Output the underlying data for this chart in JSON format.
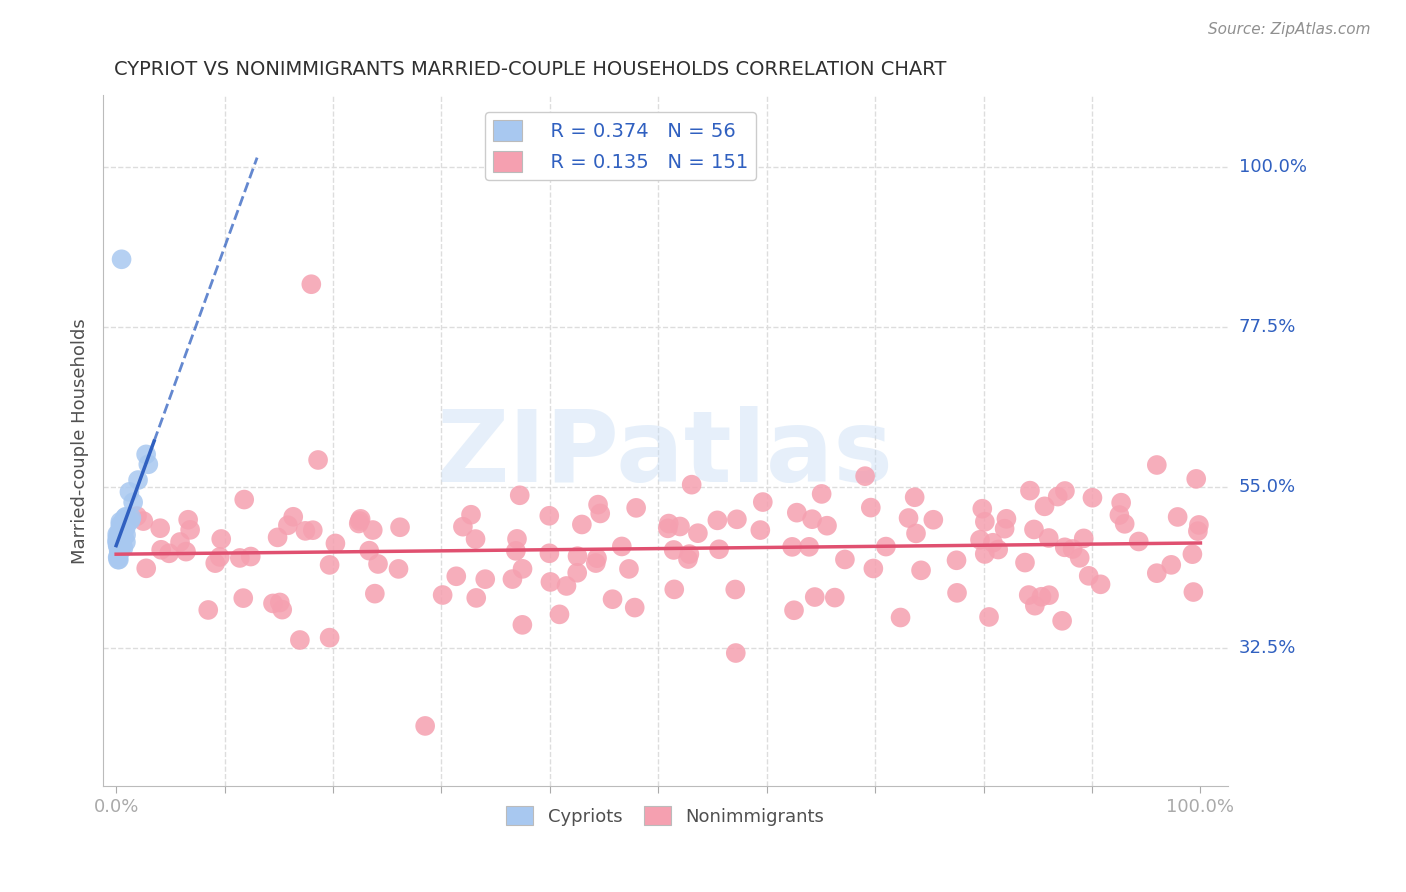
{
  "title": "CYPRIOT VS NONIMMIGRANTS MARRIED-COUPLE HOUSEHOLDS CORRELATION CHART",
  "source": "Source: ZipAtlas.com",
  "ylabel": "Married-couple Households",
  "watermark": "ZIPatlas",
  "legend_r1": "R = 0.374",
  "legend_n1": "N = 56",
  "legend_r2": "R = 0.135",
  "legend_n2": "N = 151",
  "cypriot_color": "#a8c8f0",
  "nonimmigrant_color": "#f5a0b0",
  "trendline_cypriot_color": "#3060c0",
  "trendline_nonimmigrant_color": "#e05070",
  "background_color": "#ffffff",
  "grid_color": "#dddddd",
  "title_color": "#303030",
  "right_label_color": "#3060c0",
  "ytick_vals": [
    0.325,
    0.55,
    0.775,
    1.0
  ],
  "ytick_labels": [
    "32.5%",
    "55.0%",
    "77.5%",
    "100.0%"
  ],
  "xtick_vals": [
    0.0,
    0.1,
    0.2,
    0.3,
    0.4,
    0.5,
    0.6,
    0.7,
    0.8,
    0.9,
    1.0
  ],
  "xtick_labels": [
    "0.0%",
    "",
    "",
    "",
    "",
    "",
    "",
    "",
    "",
    "",
    "100.0%"
  ]
}
